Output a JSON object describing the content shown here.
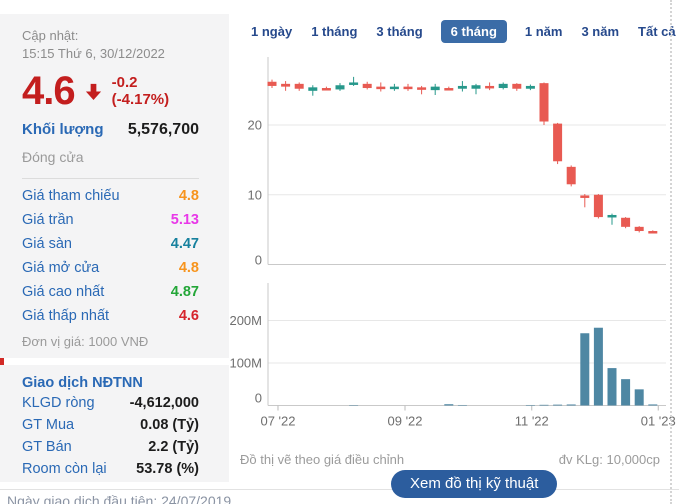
{
  "panel": {
    "updated_label": "Cập nhật:",
    "updated_value": "15:15 Thứ 6, 30/12/2022",
    "price": "4.6",
    "change": "-0.2 (-4.17%)",
    "volume_label": "Khối lượng",
    "volume_value": "5,576,700",
    "close_label": "Đóng cửa",
    "price_rows": [
      {
        "label": "Giá tham chiếu",
        "value": "4.8",
        "color": "#f7941d"
      },
      {
        "label": "Giá trần",
        "value": "5.13",
        "color": "#e838e8"
      },
      {
        "label": "Giá sàn",
        "value": "4.47",
        "color": "#17819e"
      },
      {
        "label": "Giá mở cửa",
        "value": "4.8",
        "color": "#f7941d"
      },
      {
        "label": "Giá cao nhất",
        "value": "4.87",
        "color": "#23a638"
      },
      {
        "label": "Giá thấp nhất",
        "value": "4.6",
        "color": "#d6242c"
      }
    ],
    "unit_note": "Đơn vị giá: 1000 VNĐ",
    "foreign_title": "Giao dịch NĐTNN",
    "foreign_rows": [
      {
        "label": "KLGD ròng",
        "value": "-4,612,000"
      },
      {
        "label": "GT Mua",
        "value": "0.08 (Tỷ)"
      },
      {
        "label": "GT Bán",
        "value": "2.2 (Tỷ)"
      },
      {
        "label": "Room còn lại",
        "value": "53.78 (%)"
      }
    ]
  },
  "tabs": {
    "items": [
      "1 ngày",
      "1 tháng",
      "3 tháng",
      "6 tháng",
      "1 năm",
      "3 năm",
      "Tất cả"
    ],
    "active": "6 tháng",
    "active_bg": "#3b6ca7"
  },
  "chart_data": {
    "type": "candlestick-with-volume",
    "price_unit": "1000 VND",
    "volume_unit_label": "đv KLg: 10,000cp",
    "price_axis": {
      "ticks": [
        {
          "value": 20,
          "label": "20"
        },
        {
          "value": 10,
          "label": "10"
        },
        {
          "value": 0,
          "label": "0"
        }
      ],
      "range": [
        0,
        30
      ]
    },
    "volume_axis": {
      "ticks": [
        {
          "value": 200,
          "label": "200M"
        },
        {
          "value": 100,
          "label": "100M"
        },
        {
          "value": 0,
          "label": "0"
        }
      ],
      "range": [
        0,
        230
      ]
    },
    "x_ticks": [
      {
        "label": "07 '22",
        "pos": 0.44
      },
      {
        "label": "09 '22",
        "pos": 9.78
      },
      {
        "label": "11 '22",
        "pos": 19.1
      },
      {
        "label": "01 '23",
        "pos": 28.4
      }
    ],
    "candles": [
      {
        "o": 26.2,
        "h": 26.5,
        "l": 25.3,
        "c": 25.6
      },
      {
        "o": 25.9,
        "h": 26.3,
        "l": 24.9,
        "c": 25.5
      },
      {
        "o": 25.9,
        "h": 26.1,
        "l": 24.9,
        "c": 25.2
      },
      {
        "o": 24.9,
        "h": 25.7,
        "l": 24.2,
        "c": 25.4
      },
      {
        "o": 25.3,
        "h": 25.5,
        "l": 25.0,
        "c": 25.1
      },
      {
        "o": 25.1,
        "h": 26.0,
        "l": 24.9,
        "c": 25.7
      },
      {
        "o": 25.9,
        "h": 26.9,
        "l": 25.6,
        "c": 26.1
      },
      {
        "o": 25.9,
        "h": 26.2,
        "l": 25.1,
        "c": 25.3
      },
      {
        "o": 25.5,
        "h": 26.1,
        "l": 24.8,
        "c": 25.2
      },
      {
        "o": 25.2,
        "h": 25.9,
        "l": 24.9,
        "c": 25.5
      },
      {
        "o": 25.5,
        "h": 25.9,
        "l": 24.9,
        "c": 25.2
      },
      {
        "o": 25.4,
        "h": 25.6,
        "l": 24.4,
        "c": 25.1
      },
      {
        "o": 25.0,
        "h": 25.9,
        "l": 24.3,
        "c": 25.5
      },
      {
        "o": 25.3,
        "h": 25.5,
        "l": 25.0,
        "c": 25.2
      },
      {
        "o": 25.2,
        "h": 26.3,
        "l": 24.8,
        "c": 25.6
      },
      {
        "o": 25.2,
        "h": 25.9,
        "l": 24.4,
        "c": 25.7
      },
      {
        "o": 25.6,
        "h": 26.1,
        "l": 25.0,
        "c": 25.3
      },
      {
        "o": 25.3,
        "h": 26.1,
        "l": 25.1,
        "c": 25.9
      },
      {
        "o": 25.9,
        "h": 26.0,
        "l": 24.9,
        "c": 25.2
      },
      {
        "o": 25.2,
        "h": 25.8,
        "l": 25.0,
        "c": 25.6
      },
      {
        "o": 26.0,
        "h": 26.1,
        "l": 20.0,
        "c": 20.5
      },
      {
        "o": 20.2,
        "h": 20.3,
        "l": 14.4,
        "c": 14.8
      },
      {
        "o": 14.0,
        "h": 14.2,
        "l": 11.2,
        "c": 11.5
      },
      {
        "o": 9.9,
        "h": 10.1,
        "l": 8.2,
        "c": 9.8
      },
      {
        "o": 10.0,
        "h": 10.1,
        "l": 6.6,
        "c": 6.8
      },
      {
        "o": 6.8,
        "h": 7.3,
        "l": 5.7,
        "c": 7.1
      },
      {
        "o": 6.7,
        "h": 6.8,
        "l": 5.2,
        "c": 5.4
      },
      {
        "o": 5.4,
        "h": 5.5,
        "l": 4.6,
        "c": 4.8
      },
      {
        "o": 4.8,
        "h": 4.9,
        "l": 4.5,
        "c": 4.6
      }
    ],
    "volumes_millions": [
      0.6,
      0.8,
      0.6,
      0.8,
      0.4,
      0.8,
      1.0,
      0.8,
      0.6,
      0.5,
      0.5,
      0.7,
      0.8,
      3.0,
      1.2,
      0.8,
      0.6,
      0.8,
      0.8,
      1.2,
      1.6,
      2.0,
      2.4,
      170,
      183,
      88,
      62,
      38,
      2.5
    ],
    "colors": {
      "up": "#27988b",
      "down": "#e85a52",
      "volume": "#4e87a3",
      "grid": "#e7e7e7",
      "axis": "#c9c9c9",
      "tick_text": "#6e6e6e"
    }
  },
  "footer": {
    "note_left": "Đồ thị vẽ theo giá điều chỉnh",
    "note_right": "đv KLg: 10,000cp",
    "button_label": "Xem đồ thị kỹ thuật",
    "first_trade_note": "Ngày giao dịch đầu tiên: 24/07/2019"
  }
}
